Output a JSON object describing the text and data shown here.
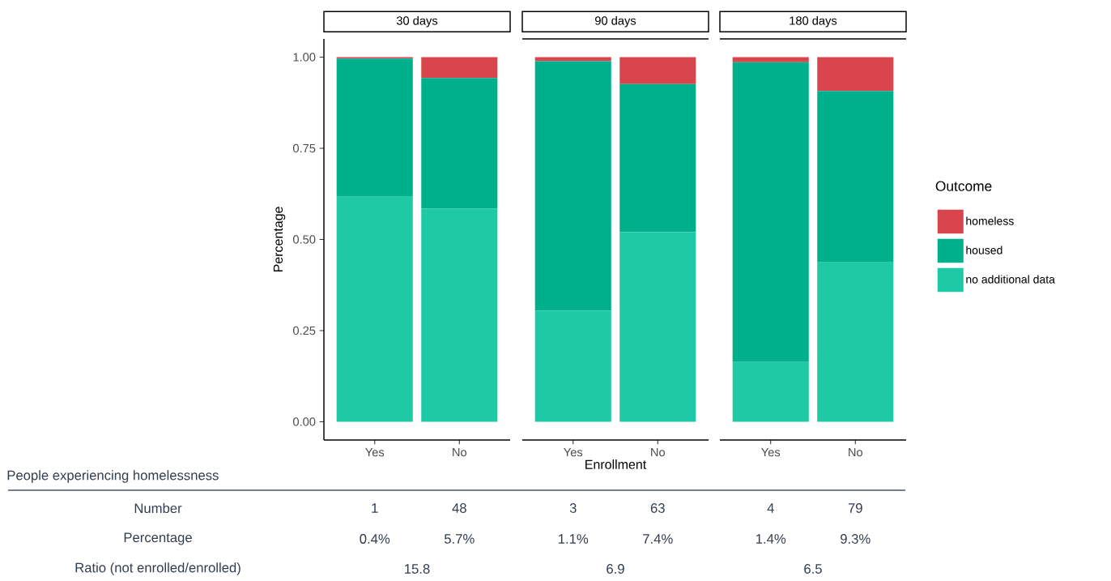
{
  "chart_data": [
    {
      "type": "bar",
      "stacked": true,
      "title": "30 days",
      "ylabel": "Percentage",
      "categories": [
        "Yes",
        "No"
      ],
      "ylim": [
        -0.05,
        1.05
      ],
      "yticks": [
        {
          "value": 0,
          "label": "0.00"
        },
        {
          "value": 0.25,
          "label": "0.25"
        },
        {
          "value": 0.5,
          "label": "0.50"
        },
        {
          "value": 0.75,
          "label": "0.75"
        },
        {
          "value": 1,
          "label": "1.00"
        }
      ],
      "series": [
        {
          "color": "#1ec9a5",
          "values": [
            0.617,
            0.585
          ]
        },
        {
          "color": "#00b08c",
          "values": [
            0.379,
            0.358
          ]
        },
        {
          "color": "#d9454c",
          "values": [
            0.004,
            0.057
          ]
        }
      ],
      "annotations": [
        "People experiencing homelessness",
        "Number",
        "Percentage",
        "Ratio (not enrolled/enrolled)",
        "1",
        "48",
        "0.4%",
        "5.7%",
        "15.8"
      ]
    },
    {
      "type": "bar",
      "stacked": true,
      "title": "90 days",
      "xlabel": "Enrollment",
      "categories": [
        "Yes",
        "No"
      ],
      "ylim": [
        -0.05,
        1.05
      ],
      "tick_labels": "x",
      "series": [
        {
          "color": "#1ec9a5",
          "values": [
            0.305,
            0.52
          ]
        },
        {
          "color": "#00b08c",
          "values": [
            0.684,
            0.406
          ]
        },
        {
          "color": "#d9454c",
          "values": [
            0.011,
            0.074
          ]
        }
      ],
      "annotations": [
        "3",
        "63",
        "1.1%",
        "7.4%",
        "6.9"
      ]
    },
    {
      "type": "bar",
      "stacked": true,
      "title": "180 days",
      "categories": [
        "Yes",
        "No"
      ],
      "ylim": [
        -0.05,
        1.05
      ],
      "tick_labels": "x",
      "legend": "right",
      "legend_title": "Outcome",
      "series": [
        {
          "name": "no additional data",
          "color": "#1ec9a5",
          "values": [
            0.164,
            0.437
          ]
        },
        {
          "name": "housed",
          "color": "#00b08c",
          "values": [
            0.822,
            0.47
          ]
        },
        {
          "name": "homeless",
          "color": "#d9454c",
          "values": [
            0.014,
            0.093
          ]
        }
      ],
      "annotations": [
        "4",
        "79",
        "1.4%",
        "9.3%",
        "6.5"
      ]
    }
  ]
}
